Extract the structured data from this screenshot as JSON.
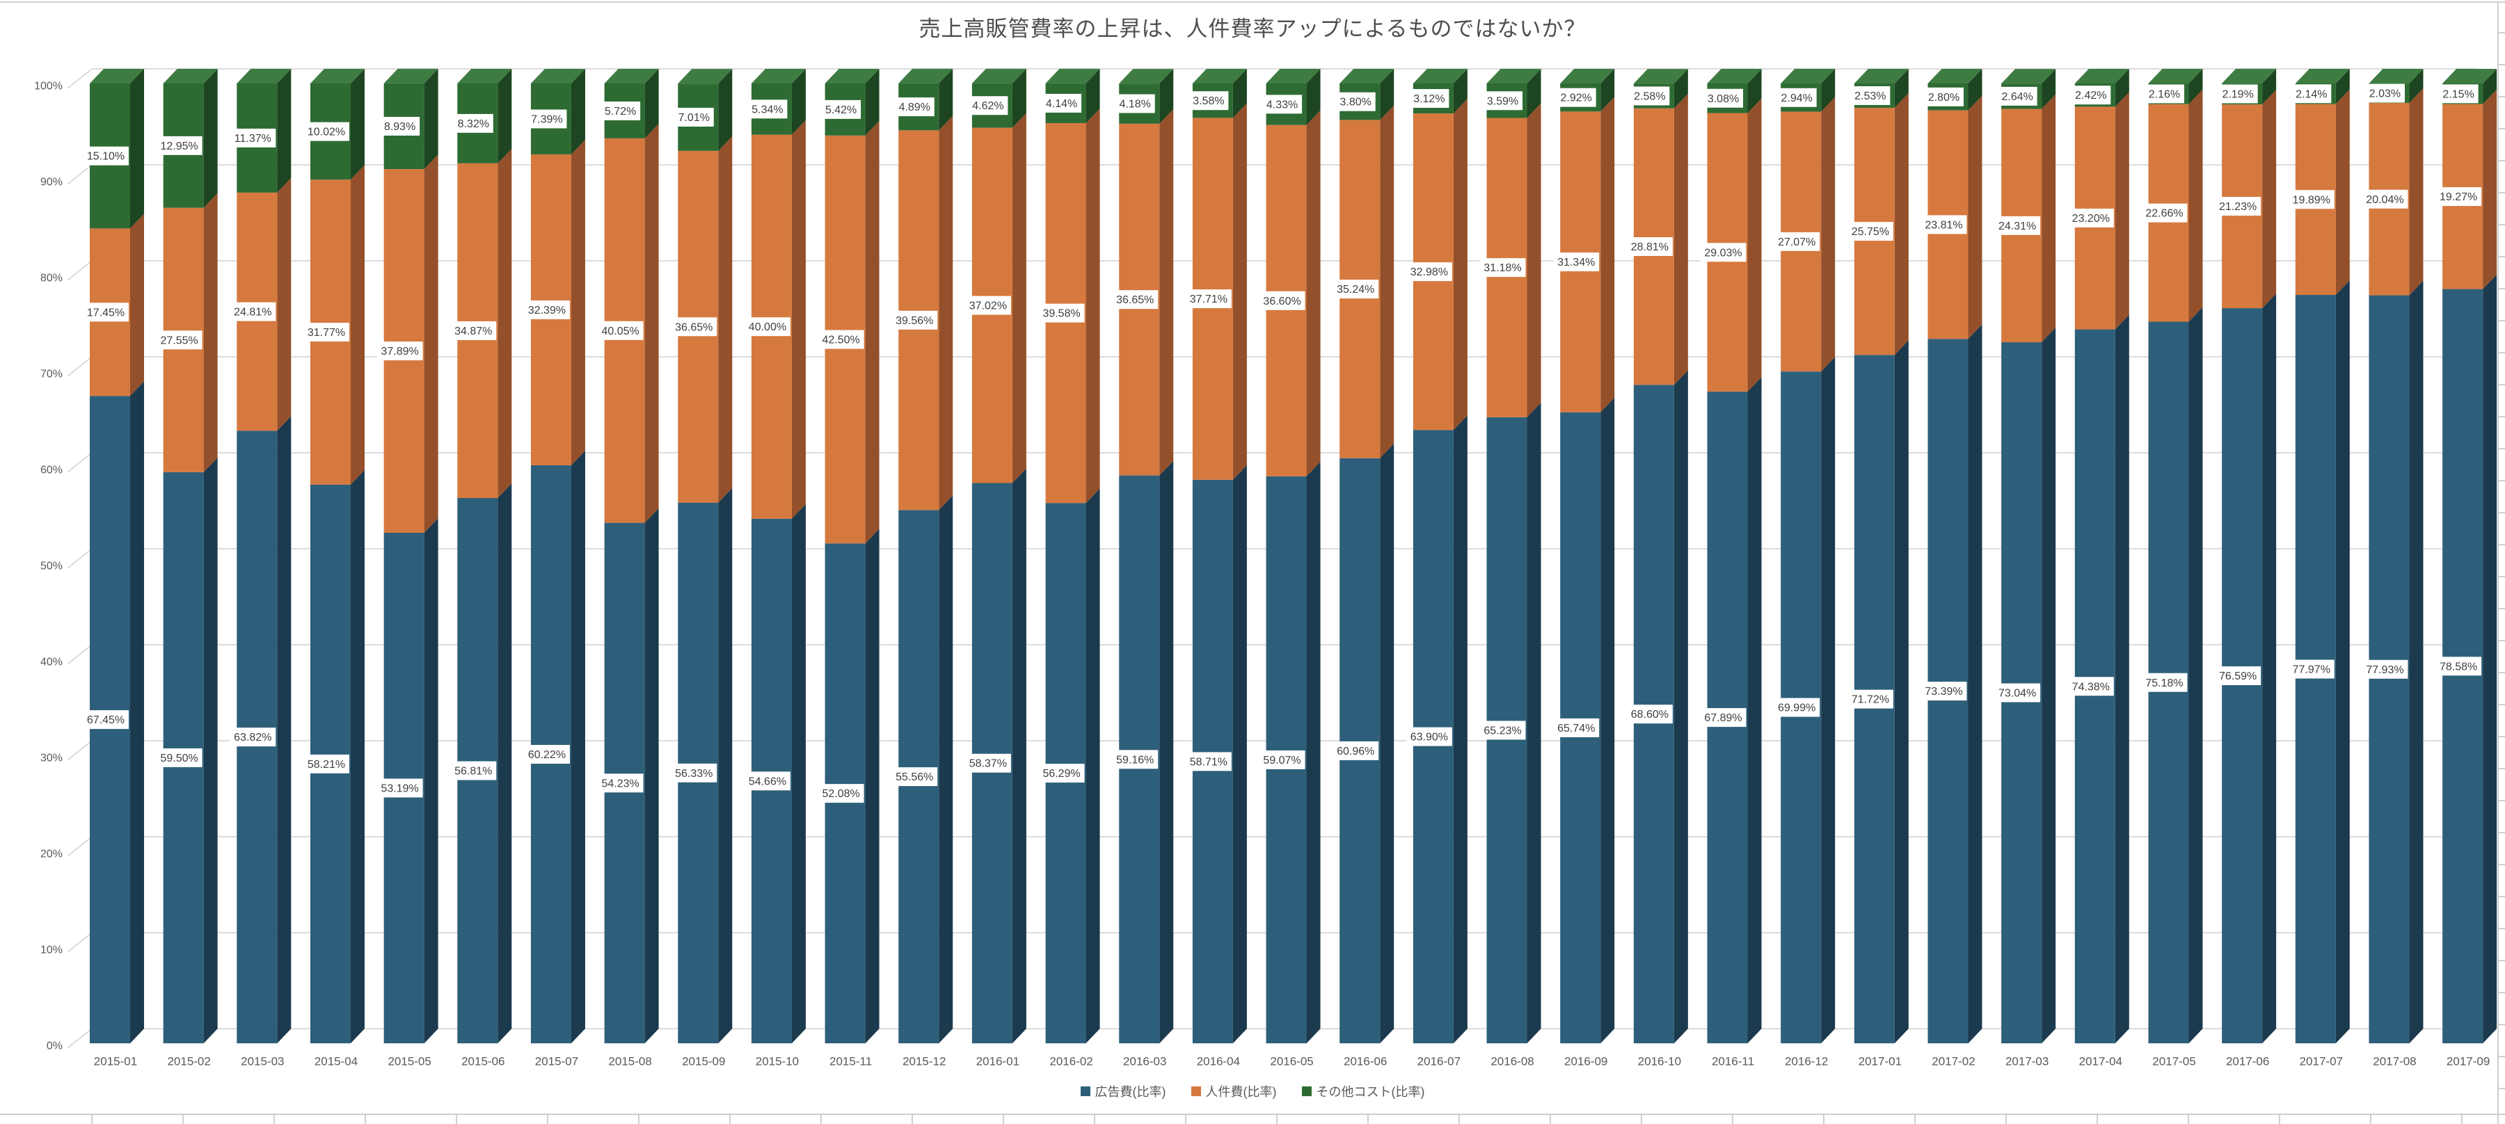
{
  "chart_data": {
    "type": "bar",
    "subtype": "stacked-100-percent-3d-column",
    "title": "売上高販管費率の上昇は、人件費率アップによるものではないか？",
    "categories": [
      "2015-01",
      "2015-02",
      "2015-03",
      "2015-04",
      "2015-05",
      "2015-06",
      "2015-07",
      "2015-08",
      "2015-09",
      "2015-10",
      "2015-11",
      "2015-12",
      "2016-01",
      "2016-02",
      "2016-03",
      "2016-04",
      "2016-05",
      "2016-06",
      "2016-07",
      "2016-08",
      "2016-09",
      "2016-10",
      "2016-11",
      "2016-12",
      "2017-01",
      "2017-02",
      "2017-03",
      "2017-04",
      "2017-05",
      "2017-06",
      "2017-07",
      "2017-08",
      "2017-09"
    ],
    "series": [
      {
        "name": "広告費(比率)",
        "color": "#2e5f7a",
        "side_color": "#1c3a4e",
        "values": [
          67.45,
          59.5,
          63.82,
          58.21,
          53.19,
          56.81,
          60.22,
          54.23,
          56.33,
          54.66,
          52.08,
          55.56,
          58.37,
          56.29,
          59.16,
          58.71,
          59.07,
          60.96,
          63.9,
          65.23,
          65.74,
          68.6,
          67.89,
          69.99,
          71.72,
          73.39,
          73.04,
          74.38,
          75.18,
          76.59,
          77.97,
          77.93,
          78.58
        ]
      },
      {
        "name": "人件費(比率)",
        "color": "#d6793f",
        "side_color": "#93502a",
        "values": [
          17.45,
          27.55,
          24.81,
          31.77,
          37.89,
          34.87,
          32.39,
          40.05,
          36.65,
          40.0,
          42.5,
          39.56,
          37.02,
          39.58,
          36.65,
          37.71,
          36.6,
          35.24,
          32.98,
          31.18,
          31.34,
          28.81,
          29.03,
          27.07,
          25.75,
          23.81,
          24.31,
          23.2,
          22.66,
          21.23,
          19.89,
          20.04,
          19.27
        ]
      },
      {
        "name": "その他コスト(比率)",
        "color": "#2e6b33",
        "side_color": "#1d4521",
        "top_color": "#3e7c42",
        "values": [
          15.1,
          12.95,
          11.37,
          10.02,
          8.93,
          8.32,
          7.39,
          5.72,
          7.01,
          5.34,
          5.42,
          4.89,
          4.62,
          4.14,
          4.18,
          3.58,
          4.33,
          3.8,
          3.12,
          3.59,
          2.92,
          2.58,
          3.08,
          2.94,
          2.53,
          2.8,
          2.64,
          2.42,
          2.16,
          2.19,
          2.14,
          2.03,
          2.15
        ]
      }
    ],
    "y_ticks": [
      "0%",
      "10%",
      "20%",
      "30%",
      "40%",
      "50%",
      "60%",
      "70%",
      "80%",
      "90%",
      "100%"
    ],
    "ylim": [
      0,
      100
    ],
    "grid": true,
    "legend_position": "bottom",
    "data_label_format": "0.00%",
    "colors": {
      "gridline": "#dcdcdc",
      "axis_text": "#595959",
      "label_text": "#3f3f3f",
      "label_box": "#ffffff"
    }
  }
}
